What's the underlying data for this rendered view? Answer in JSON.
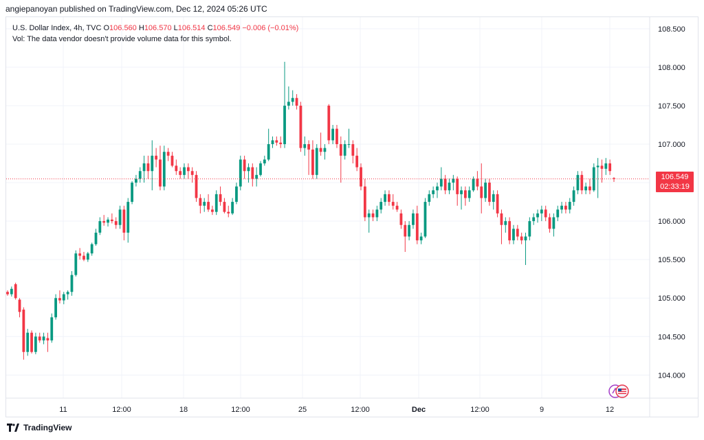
{
  "header": {
    "text": "angiepanoyan published on TradingView.com, Dec 12, 2024 05:26 UTC"
  },
  "legend": {
    "symbol": "U.S. Dollar Index, 4h, TVC",
    "o_label": "O",
    "o_value": "106.560",
    "h_label": "H",
    "h_value": "106.570",
    "l_label": "L",
    "l_value": "106.514",
    "c_label": "C",
    "c_value": "106.549",
    "change": "−0.006 (−0.01%)",
    "vol_note": "Vol: The data vendor doesn't provide volume data for this symbol."
  },
  "price_tag": {
    "price": "106.549",
    "countdown": "02:33:19"
  },
  "footer": {
    "brand": "TradingView"
  },
  "colors": {
    "up": "#089981",
    "down": "#f23645",
    "grid": "#f0f3fa",
    "axis_text": "#131722"
  },
  "chart_data": {
    "type": "candlestick",
    "ylim": [
      103.7,
      108.65
    ],
    "y_ticks": [
      "104.000",
      "104.500",
      "105.000",
      "105.500",
      "106.000",
      "106.500",
      "107.000",
      "107.500",
      "108.000",
      "108.500"
    ],
    "x_ticks": [
      "11",
      "12:00",
      "18",
      "12:00",
      "25",
      "12:00",
      "Dec",
      "12:00",
      "9",
      "12"
    ],
    "last_price": 106.549,
    "candles": [
      [
        105.08,
        105.1,
        105.03,
        105.05
      ],
      [
        105.05,
        105.15,
        105.02,
        105.12
      ],
      [
        105.18,
        105.2,
        104.98,
        105.0
      ],
      [
        104.98,
        105.0,
        104.75,
        104.82
      ],
      [
        104.85,
        104.88,
        104.2,
        104.3
      ],
      [
        104.3,
        104.6,
        104.25,
        104.55
      ],
      [
        104.55,
        104.58,
        104.28,
        104.3
      ],
      [
        104.3,
        104.55,
        104.27,
        104.5
      ],
      [
        104.5,
        104.55,
        104.42,
        104.45
      ],
      [
        104.45,
        104.55,
        104.4,
        104.5
      ],
      [
        104.48,
        104.55,
        104.3,
        104.45
      ],
      [
        104.45,
        104.8,
        104.42,
        104.75
      ],
      [
        104.75,
        105.05,
        104.72,
        105.0
      ],
      [
        105.0,
        105.1,
        104.93,
        104.97
      ],
      [
        104.97,
        105.08,
        104.92,
        105.05
      ],
      [
        105.05,
        105.1,
        104.98,
        105.08
      ],
      [
        105.08,
        105.35,
        105.03,
        105.3
      ],
      [
        105.3,
        105.62,
        105.28,
        105.58
      ],
      [
        105.58,
        105.65,
        105.5,
        105.55
      ],
      [
        105.55,
        105.6,
        105.48,
        105.5
      ],
      [
        105.5,
        105.6,
        105.47,
        105.58
      ],
      [
        105.58,
        105.72,
        105.55,
        105.7
      ],
      [
        105.7,
        105.9,
        105.68,
        105.85
      ],
      [
        105.85,
        106.05,
        105.82,
        106.0
      ],
      [
        106.0,
        106.08,
        105.94,
        105.98
      ],
      [
        105.98,
        106.05,
        105.93,
        106.02
      ],
      [
        106.02,
        106.1,
        105.97,
        106.0
      ],
      [
        106.0,
        106.05,
        105.9,
        105.95
      ],
      [
        105.95,
        106.2,
        105.9,
        106.15
      ],
      [
        106.15,
        106.2,
        105.75,
        105.85
      ],
      [
        105.85,
        106.3,
        105.72,
        106.25
      ],
      [
        106.25,
        106.52,
        106.22,
        106.5
      ],
      [
        106.5,
        106.6,
        106.45,
        106.55
      ],
      [
        106.55,
        106.7,
        106.5,
        106.65
      ],
      [
        106.65,
        106.85,
        106.5,
        106.75
      ],
      [
        106.75,
        106.85,
        106.55,
        106.65
      ],
      [
        106.65,
        107.05,
        106.4,
        106.85
      ],
      [
        106.85,
        106.95,
        106.7,
        106.8
      ],
      [
        106.8,
        106.98,
        106.4,
        106.45
      ],
      [
        106.45,
        106.98,
        106.4,
        106.9
      ],
      [
        106.9,
        106.95,
        106.78,
        106.85
      ],
      [
        106.85,
        106.9,
        106.7,
        106.72
      ],
      [
        106.72,
        106.8,
        106.6,
        106.65
      ],
      [
        106.65,
        106.7,
        106.55,
        106.6
      ],
      [
        106.6,
        106.75,
        106.55,
        106.7
      ],
      [
        106.7,
        106.75,
        106.55,
        106.65
      ],
      [
        106.65,
        106.7,
        106.5,
        106.6
      ],
      [
        106.6,
        106.65,
        106.25,
        106.3
      ],
      [
        106.3,
        106.35,
        106.1,
        106.2
      ],
      [
        106.2,
        106.3,
        106.12,
        106.25
      ],
      [
        106.25,
        106.35,
        106.12,
        106.15
      ],
      [
        106.15,
        106.2,
        106.08,
        106.12
      ],
      [
        106.12,
        106.4,
        106.08,
        106.35
      ],
      [
        106.35,
        106.45,
        106.2,
        106.25
      ],
      [
        106.25,
        106.3,
        106.1,
        106.12
      ],
      [
        106.12,
        106.2,
        106.05,
        106.1
      ],
      [
        106.1,
        106.3,
        106.08,
        106.25
      ],
      [
        106.25,
        106.5,
        106.22,
        106.45
      ],
      [
        106.45,
        106.85,
        106.4,
        106.8
      ],
      [
        106.8,
        106.85,
        106.55,
        106.65
      ],
      [
        106.65,
        106.75,
        106.5,
        106.7
      ],
      [
        106.7,
        106.75,
        106.45,
        106.55
      ],
      [
        106.55,
        106.7,
        106.45,
        106.6
      ],
      [
        106.6,
        106.78,
        106.58,
        106.75
      ],
      [
        106.75,
        106.85,
        106.72,
        106.8
      ],
      [
        106.8,
        107.2,
        106.78,
        107.0
      ],
      [
        107.0,
        107.1,
        106.95,
        107.05
      ],
      [
        107.05,
        107.1,
        106.98,
        107.02
      ],
      [
        107.02,
        107.1,
        106.95,
        107.0
      ],
      [
        107.0,
        108.07,
        106.95,
        107.5
      ],
      [
        107.5,
        107.75,
        107.45,
        107.55
      ],
      [
        107.55,
        107.7,
        107.5,
        107.6
      ],
      [
        107.6,
        107.65,
        107.45,
        107.5
      ],
      [
        107.5,
        107.55,
        106.9,
        106.95
      ],
      [
        106.95,
        107.1,
        106.85,
        107.0
      ],
      [
        107.0,
        107.05,
        106.6,
        106.93
      ],
      [
        106.93,
        107.05,
        106.55,
        106.6
      ],
      [
        106.6,
        107.0,
        106.55,
        106.95
      ],
      [
        106.95,
        107.15,
        106.85,
        106.9
      ],
      [
        106.9,
        107.0,
        106.8,
        106.95
      ],
      [
        107.5,
        107.52,
        107.0,
        107.05
      ],
      [
        107.05,
        107.25,
        107.0,
        107.2
      ],
      [
        107.2,
        107.25,
        106.95,
        107.0
      ],
      [
        107.0,
        107.1,
        106.5,
        106.85
      ],
      [
        106.85,
        107.05,
        106.8,
        107.0
      ],
      [
        107.0,
        107.2,
        106.95,
        107.0
      ],
      [
        107.0,
        107.05,
        106.75,
        106.85
      ],
      [
        106.85,
        106.95,
        106.65,
        106.7
      ],
      [
        106.7,
        106.75,
        106.4,
        106.45
      ],
      [
        106.45,
        106.55,
        106.0,
        106.05
      ],
      [
        106.05,
        106.15,
        105.85,
        106.1
      ],
      [
        106.1,
        106.15,
        106.0,
        106.05
      ],
      [
        106.05,
        106.2,
        106.0,
        106.15
      ],
      [
        106.15,
        106.3,
        106.1,
        106.25
      ],
      [
        106.25,
        106.4,
        106.2,
        106.35
      ],
      [
        106.35,
        106.4,
        106.2,
        106.25
      ],
      [
        106.25,
        106.35,
        106.15,
        106.2
      ],
      [
        106.2,
        106.25,
        106.12,
        106.15
      ],
      [
        106.1,
        106.15,
        105.9,
        105.95
      ],
      [
        105.95,
        106.0,
        105.6,
        105.8
      ],
      [
        105.8,
        106.0,
        105.75,
        105.95
      ],
      [
        105.95,
        106.15,
        105.9,
        106.1
      ],
      [
        106.1,
        106.2,
        105.7,
        105.75
      ],
      [
        105.75,
        105.85,
        105.7,
        105.8
      ],
      [
        105.8,
        106.3,
        105.78,
        106.25
      ],
      [
        106.25,
        106.4,
        106.2,
        106.35
      ],
      [
        106.35,
        106.45,
        106.3,
        106.4
      ],
      [
        106.4,
        106.5,
        106.3,
        106.45
      ],
      [
        106.45,
        106.7,
        106.4,
        106.55
      ],
      [
        106.55,
        106.6,
        106.35,
        106.4
      ],
      [
        106.4,
        106.55,
        106.35,
        106.5
      ],
      [
        106.5,
        106.6,
        106.4,
        106.55
      ],
      [
        106.55,
        106.58,
        106.2,
        106.35
      ],
      [
        106.35,
        106.45,
        106.15,
        106.4
      ],
      [
        106.4,
        106.45,
        106.2,
        106.3
      ],
      [
        106.3,
        106.45,
        106.25,
        106.4
      ],
      [
        106.4,
        106.58,
        106.38,
        106.55
      ],
      [
        106.55,
        106.65,
        106.4,
        106.45
      ],
      [
        106.45,
        106.75,
        106.1,
        106.3
      ],
      [
        106.3,
        106.55,
        106.25,
        106.5
      ],
      [
        106.5,
        106.55,
        106.2,
        106.25
      ],
      [
        106.25,
        106.4,
        106.15,
        106.35
      ],
      [
        106.35,
        106.4,
        106.05,
        106.1
      ],
      [
        106.1,
        106.15,
        105.7,
        105.95
      ],
      [
        105.95,
        106.05,
        105.85,
        106.0
      ],
      [
        106.0,
        106.05,
        105.7,
        105.75
      ],
      [
        105.75,
        105.95,
        105.7,
        105.9
      ],
      [
        105.9,
        105.95,
        105.75,
        105.8
      ],
      [
        105.8,
        105.85,
        105.7,
        105.75
      ],
      [
        105.75,
        105.85,
        105.43,
        105.8
      ],
      [
        105.8,
        106.05,
        105.75,
        106.0
      ],
      [
        106.0,
        106.1,
        105.95,
        106.05
      ],
      [
        106.05,
        106.15,
        105.98,
        106.1
      ],
      [
        106.1,
        106.2,
        106.0,
        106.15
      ],
      [
        106.15,
        106.2,
        106.0,
        106.05
      ],
      [
        106.05,
        106.1,
        105.85,
        105.9
      ],
      [
        105.9,
        106.1,
        105.8,
        106.05
      ],
      [
        106.05,
        106.2,
        106.0,
        106.15
      ],
      [
        106.15,
        106.25,
        106.1,
        106.2
      ],
      [
        106.2,
        106.25,
        106.1,
        106.15
      ],
      [
        106.15,
        106.3,
        106.1,
        106.25
      ],
      [
        106.25,
        106.45,
        106.2,
        106.4
      ],
      [
        106.4,
        106.65,
        106.35,
        106.6
      ],
      [
        106.6,
        106.65,
        106.35,
        106.4
      ],
      [
        106.4,
        106.5,
        106.35,
        106.45
      ],
      [
        106.45,
        106.55,
        106.35,
        106.4
      ],
      [
        106.4,
        106.75,
        106.38,
        106.7
      ],
      [
        106.7,
        106.82,
        106.3,
        106.72
      ],
      [
        106.72,
        106.8,
        106.5,
        106.68
      ],
      [
        106.68,
        106.82,
        106.6,
        106.75
      ],
      [
        106.75,
        106.8,
        106.6,
        106.65
      ],
      [
        106.56,
        106.57,
        106.51,
        106.55
      ]
    ]
  }
}
